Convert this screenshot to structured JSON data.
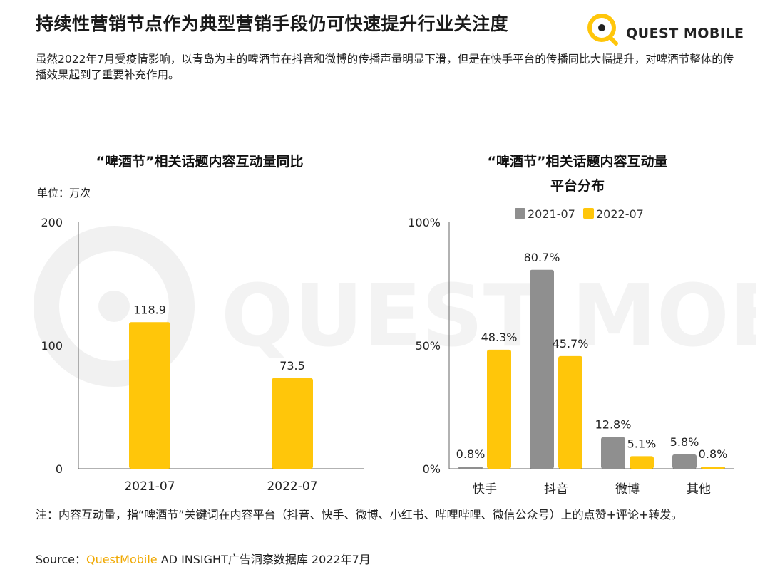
{
  "header": {
    "title": "持续性营销节点作为典型营销手段仍可快速提升行业关注度",
    "logo_text": "QUEST MOBILE"
  },
  "intro": "虽然2022年7月受疫情影响，以青岛为主的啤酒节在抖音和微博的传播声量明显下滑，但是在快手平台的传播同比大幅提升，对啤酒节整体的传播效果起到了重要补充作用。",
  "watermark_text": "QUEST MOBILE",
  "colors": {
    "gold": "#ffc60a",
    "gray": "#8f8f8f",
    "axis": "#666666"
  },
  "chart_data": [
    {
      "type": "bar",
      "title": "“啤酒节”相关话题内容互动量同比",
      "unit": "单位：万次",
      "categories": [
        "2021-07",
        "2022-07"
      ],
      "values": [
        118.9,
        73.5
      ],
      "value_labels": [
        "118.9",
        "73.5"
      ],
      "ylim": [
        0,
        200
      ],
      "yticks": [
        "0",
        "100",
        "200"
      ]
    },
    {
      "type": "bar",
      "title_line1": "“啤酒节”相关话题内容互动量",
      "title_line2": "平台分布",
      "categories": [
        "快手",
        "抖音",
        "微博",
        "其他"
      ],
      "series": [
        {
          "name": "2021-07",
          "values": [
            0.8,
            80.7,
            12.8,
            5.8
          ],
          "labels": [
            "0.8%",
            "80.7%",
            "12.8%",
            "5.8%"
          ]
        },
        {
          "name": "2022-07",
          "values": [
            48.3,
            45.7,
            5.1,
            0.8
          ],
          "labels": [
            "48.3%",
            "45.7%",
            "5.1%",
            "0.8%"
          ]
        }
      ],
      "ylim": [
        0,
        100
      ],
      "yticks": [
        "0%",
        "50%",
        "100%"
      ],
      "legend": "top"
    }
  ],
  "footer": {
    "note": "注：内容互动量，指“啤酒节”关键词在内容平台（抖音、快手、微博、小红书、哔哩哔哩、微信公众号）上的点赞+评论+转发。",
    "source_prefix": "Source：",
    "source_brand": "QuestMobile",
    "source_rest": " AD INSIGHT广告洞察数据库 2022年7月"
  }
}
